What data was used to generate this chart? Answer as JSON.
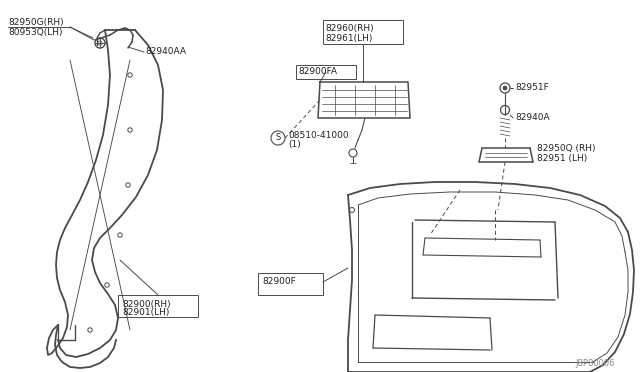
{
  "bg_color": "#ffffff",
  "line_color": "#4a4a4a",
  "text_color": "#222222",
  "part_numbers": {
    "top_left_label1": "82950G(RH)",
    "top_left_label2": "80953Q(LH)",
    "mid_left_label": "82940AA",
    "top_center_label1": "82960(RH)",
    "top_center_label2": "82961(LH)",
    "center_label": "82900FA",
    "screw_label": "08510-41000",
    "screw_sub": "(1)",
    "right_top_label": "82951F",
    "right_mid_label": "82940A",
    "right_bot_label1": "82950Q (RH)",
    "right_bot_label2": "82951 (LH)",
    "bottom_left_label1": "82900(RH)",
    "bottom_left_label2": "82901(LH)",
    "bottom_center_label": "82900F",
    "corner_ref": "J8P80006"
  }
}
